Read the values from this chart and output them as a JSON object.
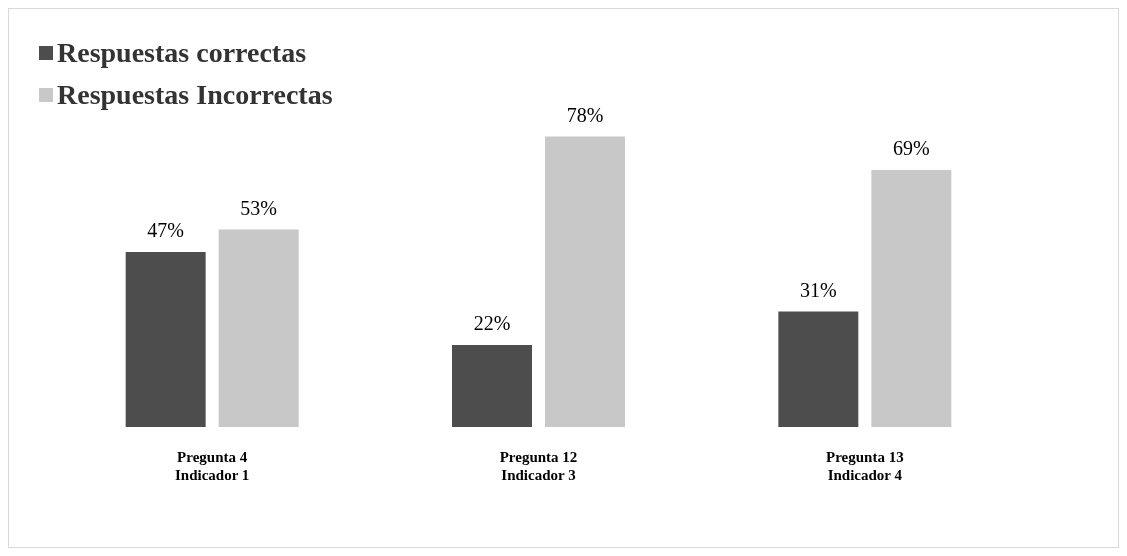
{
  "chart_data": {
    "type": "bar",
    "categories": [
      "Pregunta 4\nIndicador 1",
      "Pregunta 12\nIndicador 3",
      "Pregunta 13\nIndicador 4"
    ],
    "series": [
      {
        "name": "Respuestas correctas",
        "color": "#4d4d4d",
        "values": [
          47,
          22,
          31
        ],
        "value_labels": [
          "47%",
          "22%",
          "31%"
        ]
      },
      {
        "name": "Respuestas Incorrectas",
        "color": "#c8c8c8",
        "values": [
          53,
          78,
          69
        ],
        "value_labels": [
          "53%",
          "78%",
          "69%"
        ]
      }
    ],
    "legend": "top left",
    "grid": false,
    "tick_labels": "x"
  }
}
